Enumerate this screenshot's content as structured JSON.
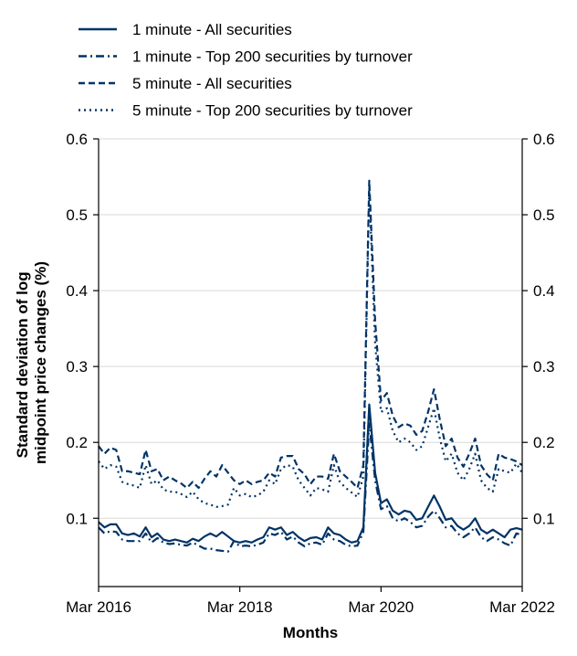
{
  "chart_data": {
    "type": "line",
    "title": "",
    "xlabel": "Months",
    "ylabel": "Standard deviation of log midpoint price changes (%)",
    "ylabel_lines": [
      "Standard deviation of log",
      "midpoint price changes (%)"
    ],
    "xlim": [
      "2016-03",
      "2022-03"
    ],
    "ylim": [
      0.01,
      0.6
    ],
    "x_ticks": [
      "2016-03",
      "2018-03",
      "2020-03",
      "2022-03"
    ],
    "x_tick_labels": [
      "Mar 2016",
      "Mar 2018",
      "Mar 2020",
      "Mar 2022"
    ],
    "y_ticks": [
      0.1,
      0.2,
      0.3,
      0.4,
      0.5,
      0.6
    ],
    "y_tick_labels": [
      "0.1",
      "0.2",
      "0.3",
      "0.4",
      "0.5",
      "0.6"
    ],
    "right_axis": true,
    "grid": "horizontal",
    "legend_position": "top",
    "line_color": "#003366",
    "x": [
      "2016-03",
      "2016-04",
      "2016-05",
      "2016-06",
      "2016-07",
      "2016-08",
      "2016-09",
      "2016-10",
      "2016-11",
      "2016-12",
      "2017-01",
      "2017-02",
      "2017-03",
      "2017-04",
      "2017-05",
      "2017-06",
      "2017-07",
      "2017-08",
      "2017-09",
      "2017-10",
      "2017-11",
      "2017-12",
      "2018-01",
      "2018-02",
      "2018-03",
      "2018-04",
      "2018-05",
      "2018-06",
      "2018-07",
      "2018-08",
      "2018-09",
      "2018-10",
      "2018-11",
      "2018-12",
      "2019-01",
      "2019-02",
      "2019-03",
      "2019-04",
      "2019-05",
      "2019-06",
      "2019-07",
      "2019-08",
      "2019-09",
      "2019-10",
      "2019-11",
      "2019-12",
      "2020-01",
      "2020-02",
      "2020-03",
      "2020-04",
      "2020-05",
      "2020-06",
      "2020-07",
      "2020-08",
      "2020-09",
      "2020-10",
      "2020-11",
      "2020-12",
      "2021-01",
      "2021-02",
      "2021-03",
      "2021-04",
      "2021-05",
      "2021-06",
      "2021-07",
      "2021-08",
      "2021-09",
      "2021-10",
      "2021-11",
      "2021-12",
      "2022-01",
      "2022-02",
      "2022-03"
    ],
    "series": [
      {
        "name": "1 minute - All securities",
        "dash": "solid",
        "values": [
          0.095,
          0.088,
          0.092,
          0.092,
          0.08,
          0.078,
          0.08,
          0.076,
          0.088,
          0.075,
          0.08,
          0.072,
          0.07,
          0.072,
          0.07,
          0.068,
          0.073,
          0.07,
          0.076,
          0.08,
          0.076,
          0.082,
          0.076,
          0.07,
          0.068,
          0.07,
          0.068,
          0.072,
          0.075,
          0.088,
          0.085,
          0.088,
          0.078,
          0.082,
          0.075,
          0.07,
          0.074,
          0.075,
          0.072,
          0.088,
          0.08,
          0.078,
          0.072,
          0.068,
          0.07,
          0.088,
          0.25,
          0.16,
          0.12,
          0.125,
          0.11,
          0.105,
          0.11,
          0.108,
          0.098,
          0.1,
          0.115,
          0.13,
          0.115,
          0.098,
          0.1,
          0.09,
          0.085,
          0.09,
          0.1,
          0.085,
          0.08,
          0.085,
          0.08,
          0.075,
          0.085,
          0.087,
          0.085
        ]
      },
      {
        "name": "1 minute - Top 200 securities by turnover",
        "dash": "dashdot",
        "values": [
          0.088,
          0.08,
          0.083,
          0.082,
          0.072,
          0.07,
          0.07,
          0.07,
          0.08,
          0.068,
          0.074,
          0.068,
          0.066,
          0.067,
          0.065,
          0.064,
          0.068,
          0.064,
          0.06,
          0.06,
          0.058,
          0.057,
          0.056,
          0.07,
          0.063,
          0.064,
          0.063,
          0.065,
          0.068,
          0.08,
          0.078,
          0.082,
          0.072,
          0.076,
          0.068,
          0.063,
          0.067,
          0.068,
          0.065,
          0.08,
          0.072,
          0.07,
          0.065,
          0.063,
          0.064,
          0.082,
          0.225,
          0.15,
          0.112,
          0.116,
          0.1,
          0.096,
          0.1,
          0.095,
          0.088,
          0.09,
          0.102,
          0.11,
          0.1,
          0.088,
          0.09,
          0.08,
          0.075,
          0.08,
          0.088,
          0.075,
          0.07,
          0.075,
          0.072,
          0.067,
          0.064,
          0.08,
          0.078
        ]
      },
      {
        "name": "5 minute - All securities",
        "dash": "dashed",
        "values": [
          0.195,
          0.185,
          0.193,
          0.19,
          0.162,
          0.162,
          0.16,
          0.158,
          0.19,
          0.162,
          0.165,
          0.15,
          0.155,
          0.15,
          0.146,
          0.14,
          0.148,
          0.14,
          0.152,
          0.162,
          0.155,
          0.17,
          0.16,
          0.15,
          0.145,
          0.15,
          0.145,
          0.148,
          0.15,
          0.16,
          0.155,
          0.18,
          0.182,
          0.182,
          0.165,
          0.158,
          0.145,
          0.155,
          0.155,
          0.152,
          0.185,
          0.162,
          0.155,
          0.148,
          0.14,
          0.17,
          0.545,
          0.36,
          0.255,
          0.265,
          0.235,
          0.22,
          0.225,
          0.222,
          0.21,
          0.215,
          0.24,
          0.27,
          0.23,
          0.195,
          0.205,
          0.18,
          0.168,
          0.185,
          0.205,
          0.17,
          0.158,
          0.15,
          0.185,
          0.18,
          0.178,
          0.175,
          0.17
        ]
      },
      {
        "name": "5 minute - Top 200 securities by turnover",
        "dash": "dotted",
        "values": [
          0.175,
          0.165,
          0.17,
          0.168,
          0.148,
          0.145,
          0.143,
          0.14,
          0.17,
          0.145,
          0.15,
          0.138,
          0.135,
          0.135,
          0.132,
          0.128,
          0.135,
          0.125,
          0.12,
          0.118,
          0.115,
          0.116,
          0.118,
          0.14,
          0.13,
          0.132,
          0.128,
          0.13,
          0.135,
          0.15,
          0.145,
          0.165,
          0.17,
          0.168,
          0.15,
          0.14,
          0.13,
          0.14,
          0.138,
          0.135,
          0.17,
          0.148,
          0.14,
          0.134,
          0.128,
          0.155,
          0.535,
          0.33,
          0.24,
          0.245,
          0.215,
          0.2,
          0.205,
          0.2,
          0.19,
          0.195,
          0.22,
          0.245,
          0.205,
          0.175,
          0.185,
          0.16,
          0.15,
          0.165,
          0.185,
          0.15,
          0.14,
          0.135,
          0.165,
          0.162,
          0.16,
          0.172,
          0.16
        ]
      }
    ]
  }
}
